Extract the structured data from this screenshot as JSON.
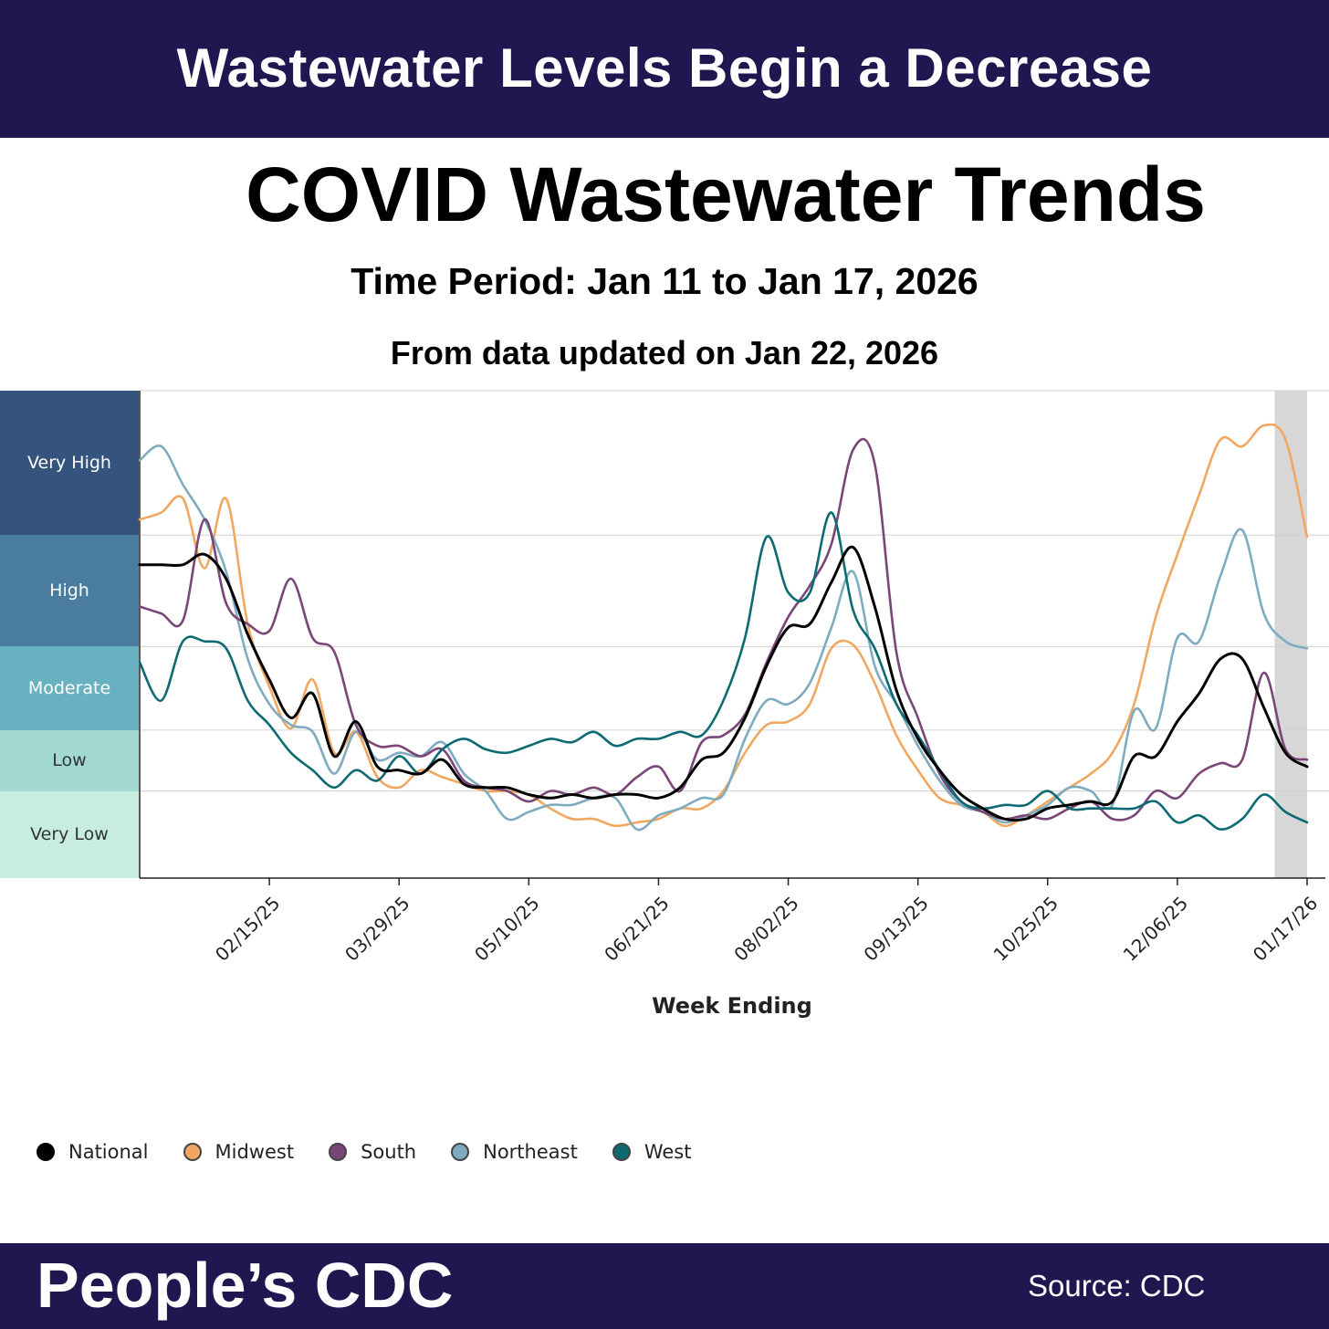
{
  "header": {
    "banner_title": "Wastewater Levels Begin a Decrease"
  },
  "footer": {
    "brand": "People’s CDC",
    "source": "Source: CDC"
  },
  "chart_data": {
    "type": "line",
    "title": "COVID Wastewater Trends",
    "subtitle": "Time Period: Jan 11 to Jan 17, 2026",
    "subtitle2": "From data updated on Jan 22, 2026",
    "xlabel": "Week Ending",
    "ylabel": "",
    "x_ticks": [
      "02/15/25",
      "03/29/25",
      "05/10/25",
      "06/21/25",
      "08/02/25",
      "09/13/25",
      "10/25/25",
      "12/06/25",
      "01/17/26"
    ],
    "x_range": [
      "2025-01-04",
      "2026-01-17"
    ],
    "y_range": [
      0,
      14
    ],
    "levels": [
      {
        "name": "Very Low",
        "from": 0,
        "to": 2.5,
        "color": "#c6edde",
        "text_color": "#333333"
      },
      {
        "name": "Low",
        "from": 2.5,
        "to": 4.25,
        "color": "#a2d9d2",
        "text_color": "#333333"
      },
      {
        "name": "Moderate",
        "from": 4.25,
        "to": 6.65,
        "color": "#67b1c0",
        "text_color": "#ffffff"
      },
      {
        "name": "High",
        "from": 6.65,
        "to": 9.85,
        "color": "#4a7c9f",
        "text_color": "#ffffff"
      },
      {
        "name": "Very High",
        "from": 9.85,
        "to": 14,
        "color": "#34547d",
        "text_color": "#ffffff"
      }
    ],
    "highlight_week": {
      "from": "2026-01-10",
      "to": "2026-01-17",
      "color": "#d7d7d7"
    },
    "grid": true,
    "legend_position": "bottom-left",
    "x": [
      "2025-01-04",
      "2025-01-11",
      "2025-01-18",
      "2025-01-25",
      "2025-02-01",
      "2025-02-08",
      "2025-02-15",
      "2025-02-22",
      "2025-03-01",
      "2025-03-08",
      "2025-03-15",
      "2025-03-22",
      "2025-03-29",
      "2025-04-05",
      "2025-04-12",
      "2025-04-19",
      "2025-04-26",
      "2025-05-03",
      "2025-05-10",
      "2025-05-17",
      "2025-05-24",
      "2025-05-31",
      "2025-06-07",
      "2025-06-14",
      "2025-06-21",
      "2025-06-28",
      "2025-07-05",
      "2025-07-12",
      "2025-07-19",
      "2025-07-26",
      "2025-08-02",
      "2025-08-09",
      "2025-08-16",
      "2025-08-23",
      "2025-08-30",
      "2025-09-06",
      "2025-09-13",
      "2025-09-20",
      "2025-09-27",
      "2025-10-04",
      "2025-10-11",
      "2025-10-18",
      "2025-10-25",
      "2025-11-01",
      "2025-11-08",
      "2025-11-15",
      "2025-11-22",
      "2025-11-29",
      "2025-12-06",
      "2025-12-13",
      "2025-12-20",
      "2025-12-27",
      "2026-01-03",
      "2026-01-10",
      "2026-01-17"
    ],
    "series": [
      {
        "name": "National",
        "color": "#000000",
        "values": [
          9.0,
          9.0,
          9.0,
          9.3,
          8.6,
          7.0,
          5.7,
          4.6,
          5.3,
          3.5,
          4.5,
          3.2,
          3.1,
          3.0,
          3.4,
          2.7,
          2.6,
          2.6,
          2.4,
          2.3,
          2.4,
          2.3,
          2.4,
          2.4,
          2.3,
          2.6,
          3.4,
          3.6,
          4.6,
          6.1,
          7.2,
          7.3,
          8.5,
          9.5,
          7.8,
          5.4,
          4.0,
          3.1,
          2.4,
          2.0,
          1.7,
          1.7,
          2.0,
          2.1,
          2.2,
          2.2,
          3.5,
          3.5,
          4.5,
          5.3,
          6.3,
          6.3,
          4.9,
          3.6,
          3.2
        ]
      },
      {
        "name": "Midwest",
        "color": "#f0a860",
        "values": [
          10.3,
          10.5,
          10.9,
          8.9,
          10.9,
          7.3,
          5.5,
          4.3,
          5.7,
          3.6,
          4.2,
          2.9,
          2.6,
          3.1,
          2.9,
          2.7,
          2.5,
          2.5,
          2.4,
          2.0,
          1.7,
          1.7,
          1.5,
          1.6,
          1.7,
          2.0,
          2.0,
          2.5,
          3.6,
          4.4,
          4.5,
          5.0,
          6.6,
          6.7,
          5.6,
          4.1,
          3.1,
          2.3,
          2.1,
          1.9,
          1.5,
          1.8,
          2.2,
          2.6,
          3.0,
          3.6,
          5.0,
          7.5,
          9.3,
          11.0,
          12.6,
          12.4,
          13.0,
          12.6,
          9.8
        ]
      },
      {
        "name": "South",
        "color": "#7a4678",
        "values": [
          7.8,
          7.6,
          7.4,
          10.3,
          7.9,
          7.3,
          7.1,
          8.6,
          6.9,
          6.5,
          4.4,
          3.8,
          3.8,
          3.5,
          3.7,
          2.8,
          2.6,
          2.5,
          2.2,
          2.5,
          2.4,
          2.6,
          2.4,
          2.9,
          3.2,
          2.5,
          3.9,
          4.1,
          4.7,
          6.2,
          7.5,
          8.4,
          9.6,
          12.3,
          11.9,
          6.5,
          4.6,
          3.0,
          2.2,
          1.9,
          1.7,
          1.8,
          1.7,
          2.0,
          2.2,
          1.7,
          1.8,
          2.5,
          2.3,
          3.0,
          3.3,
          3.4,
          5.9,
          3.7,
          3.4
        ]
      },
      {
        "name": "Northeast",
        "color": "#7fabc0",
        "values": [
          12.0,
          12.4,
          11.3,
          10.3,
          8.8,
          6.3,
          5.0,
          4.4,
          4.2,
          3.0,
          4.2,
          3.4,
          3.6,
          3.5,
          3.9,
          3.0,
          2.5,
          1.7,
          1.9,
          2.1,
          2.1,
          2.3,
          2.3,
          1.4,
          1.8,
          2.0,
          2.3,
          2.4,
          4.0,
          5.1,
          5.0,
          5.6,
          7.2,
          8.8,
          6.1,
          5.0,
          3.8,
          2.8,
          2.1,
          1.9,
          1.6,
          1.8,
          2.1,
          2.6,
          2.5,
          2.1,
          4.8,
          4.3,
          6.9,
          6.8,
          8.7,
          10.0,
          7.6,
          6.8,
          6.6
        ]
      },
      {
        "name": "West",
        "color": "#0e6a72",
        "values": [
          6.2,
          5.1,
          6.8,
          6.8,
          6.6,
          5.1,
          4.4,
          3.6,
          3.1,
          2.6,
          3.1,
          2.8,
          3.5,
          3.0,
          3.7,
          4.0,
          3.7,
          3.6,
          3.8,
          4.0,
          3.9,
          4.2,
          3.8,
          4.0,
          4.0,
          4.2,
          4.1,
          5.1,
          6.9,
          9.8,
          8.2,
          8.2,
          10.5,
          7.7,
          6.6,
          5.0,
          4.1,
          3.1,
          2.2,
          2.0,
          2.1,
          2.1,
          2.5,
          2.0,
          2.0,
          2.0,
          2.0,
          2.2,
          1.6,
          1.8,
          1.4,
          1.7,
          2.4,
          1.9,
          1.6
        ]
      }
    ]
  }
}
